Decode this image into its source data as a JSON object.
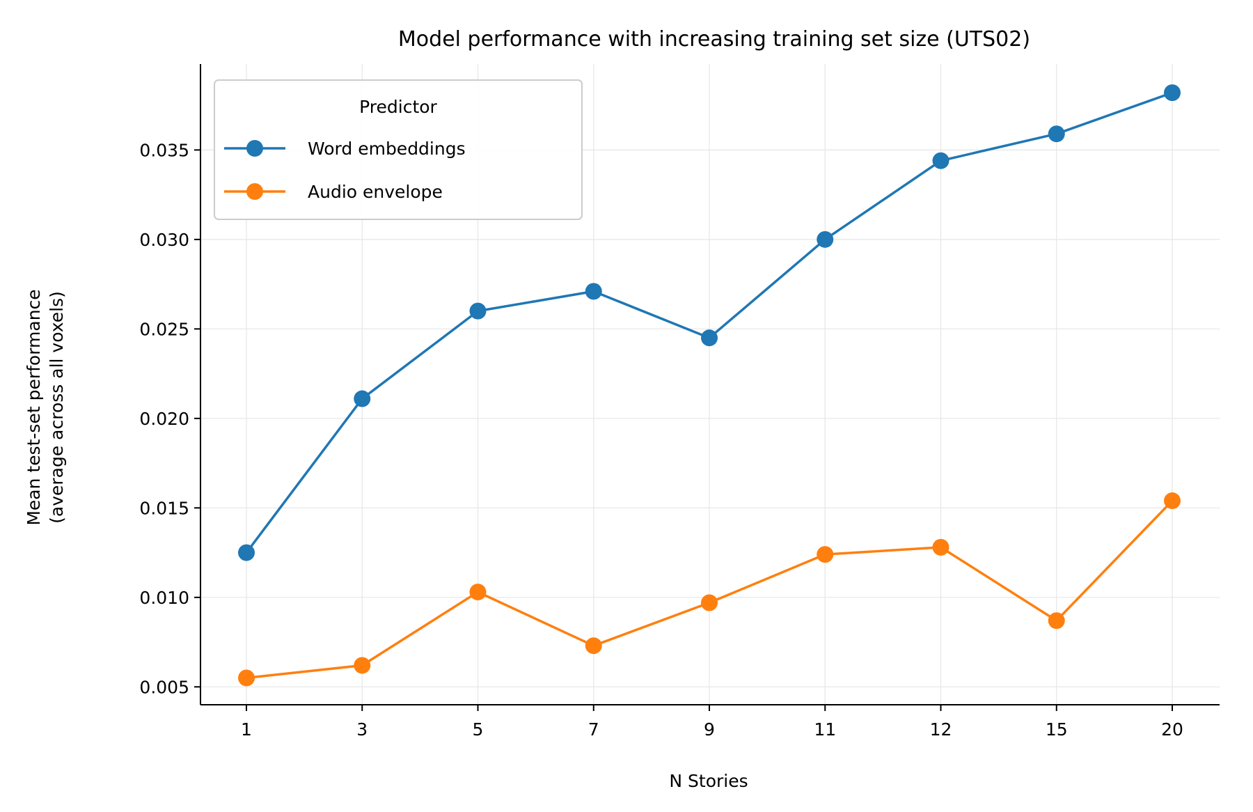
{
  "chart_data": {
    "type": "line",
    "title": "Model performance with increasing training set size (UTS02)",
    "xlabel": "N Stories",
    "ylabel_line1": "Mean test-set performance",
    "ylabel_line2": "(average across all voxels)",
    "categories": [
      "1",
      "3",
      "5",
      "7",
      "9",
      "11",
      "12",
      "15",
      "20"
    ],
    "ylim": [
      0.004,
      0.0398
    ],
    "yticks": [
      0.005,
      0.01,
      0.015,
      0.02,
      0.025,
      0.03,
      0.035
    ],
    "ytick_labels": [
      "0.005",
      "0.010",
      "0.015",
      "0.020",
      "0.025",
      "0.030",
      "0.035"
    ],
    "grid": true,
    "legend": {
      "title": "Predictor",
      "placement": "top-left"
    },
    "series": [
      {
        "name": "Word embeddings",
        "color": "#1f77b4",
        "values": [
          0.0125,
          0.0211,
          0.026,
          0.0271,
          0.0245,
          0.03,
          0.0344,
          0.0359,
          0.0382
        ]
      },
      {
        "name": "Audio envelope",
        "color": "#ff7f0e",
        "values": [
          0.0055,
          0.0062,
          0.0103,
          0.0073,
          0.0097,
          0.0124,
          0.0128,
          0.0087,
          0.0154
        ]
      }
    ]
  }
}
